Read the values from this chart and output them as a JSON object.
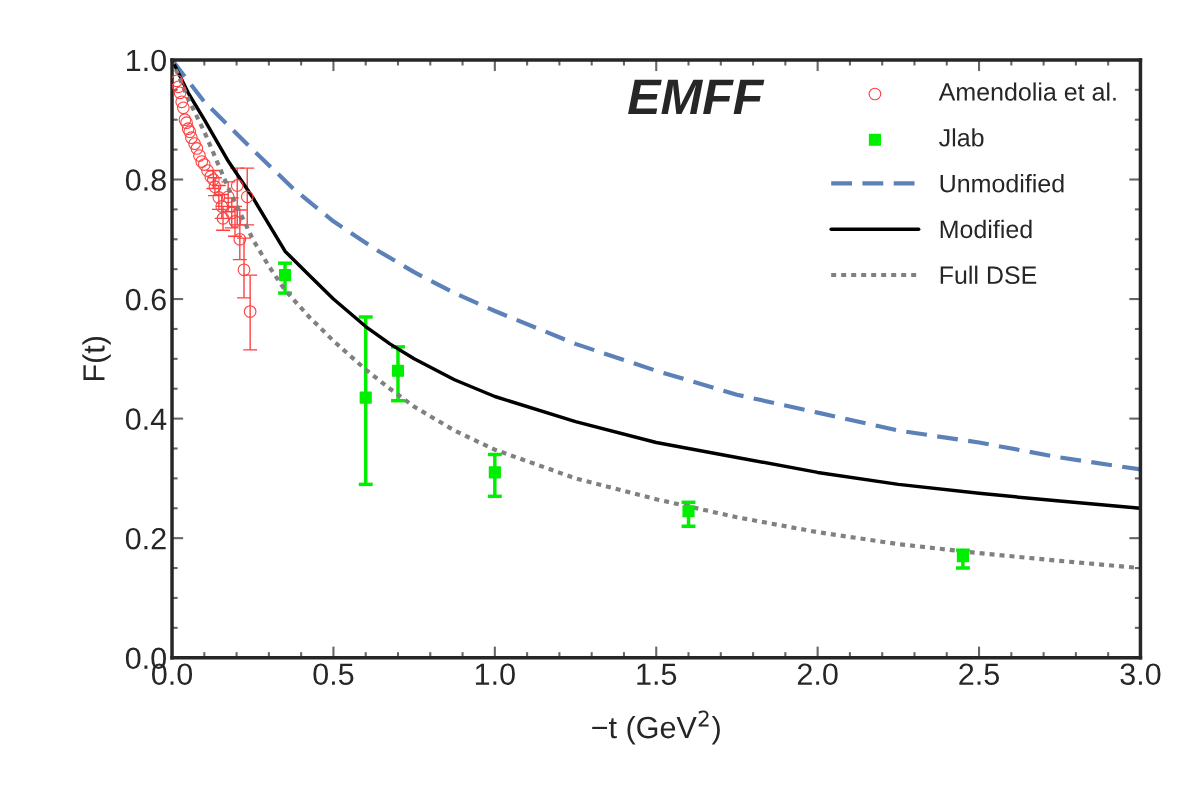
{
  "chart_data": {
    "type": "line",
    "title": "EMFF",
    "xlabel": "−t (GeV$^{2}$)",
    "ylabel": "F(t)",
    "xlim": [
      0,
      3
    ],
    "ylim": [
      0,
      1
    ],
    "xticks": [
      {
        "value": 0,
        "label": "0.0"
      },
      {
        "value": 0.5,
        "label": "0.5"
      },
      {
        "value": 1,
        "label": "1.0"
      },
      {
        "value": 1.5,
        "label": "1.5"
      },
      {
        "value": 2,
        "label": "2.0"
      },
      {
        "value": 2.5,
        "label": "2.5"
      },
      {
        "value": 3,
        "label": "3.0"
      }
    ],
    "yticks": [
      {
        "value": 0,
        "label": "0.0"
      },
      {
        "value": 0.2,
        "label": "0.2"
      },
      {
        "value": 0.4,
        "label": "0.4"
      },
      {
        "value": 0.6,
        "label": "0.6"
      },
      {
        "value": 0.8,
        "label": "0.8"
      },
      {
        "value": 1,
        "label": "1.0"
      }
    ],
    "grid": false,
    "legend": "top right",
    "series": [
      {
        "name": "Amendolia et al.",
        "type": "scatter",
        "marker": "circle",
        "color": "#ff4040",
        "x": [
          0.015,
          0.02,
          0.025,
          0.03,
          0.035,
          0.04,
          0.045,
          0.05,
          0.055,
          0.06,
          0.07,
          0.077,
          0.085,
          0.092,
          0.1,
          0.11,
          0.12,
          0.128,
          0.133,
          0.145,
          0.154,
          0.158,
          0.174,
          0.185,
          0.195,
          0.202,
          0.21,
          0.223,
          0.233,
          0.242
        ],
        "values": [
          0.965,
          0.955,
          0.945,
          0.93,
          0.92,
          0.9,
          0.895,
          0.885,
          0.88,
          0.87,
          0.86,
          0.852,
          0.84,
          0.83,
          0.825,
          0.815,
          0.805,
          0.8,
          0.788,
          0.77,
          0.755,
          0.735,
          0.771,
          0.744,
          0.73,
          0.79,
          0.7,
          0.649,
          0.771,
          0.579
        ],
        "errors": [
          null,
          null,
          null,
          null,
          null,
          null,
          null,
          null,
          null,
          null,
          null,
          null,
          null,
          null,
          null,
          null,
          null,
          0.015,
          0.015,
          0.02,
          0.02,
          0.02,
          0.025,
          0.025,
          0.025,
          [
            0.724,
            0.819
          ],
          [
            0.666,
            0.749
          ],
          [
            0.602,
            0.702
          ],
          [
            0.724,
            0.819
          ],
          [
            0.515,
            0.64
          ]
        ]
      },
      {
        "name": "Jlab",
        "type": "scatter",
        "marker": "square",
        "color": "#00ee00",
        "x": [
          0.35,
          0.6,
          0.7,
          1.0,
          1.6,
          2.45
        ],
        "values": [
          0.64,
          0.435,
          0.48,
          0.31,
          0.245,
          0.17
        ],
        "errors": [
          [
            0.61,
            0.66
          ],
          [
            0.29,
            0.57
          ],
          [
            0.43,
            0.52
          ],
          [
            0.27,
            0.34
          ],
          [
            0.22,
            0.26
          ],
          [
            0.15,
            0.18
          ]
        ]
      },
      {
        "name": "Unmodified",
        "line_style": "dashed",
        "color": "#5b81b8",
        "x": [
          0,
          0.05,
          0.1,
          0.175,
          0.25,
          0.375,
          0.5,
          0.625,
          0.75,
          0.875,
          1.0,
          1.25,
          1.5,
          1.75,
          2.0,
          2.25,
          2.5,
          2.75,
          3.0
        ],
        "values": [
          1.0,
          0.965,
          0.93,
          0.89,
          0.85,
          0.785,
          0.73,
          0.685,
          0.645,
          0.61,
          0.58,
          0.525,
          0.48,
          0.44,
          0.41,
          0.38,
          0.36,
          0.335,
          0.315
        ]
      },
      {
        "name": "Modified",
        "line_style": "solid",
        "color": "#000000",
        "x": [
          0,
          0.05,
          0.1,
          0.175,
          0.25,
          0.3,
          0.35,
          0.425,
          0.5,
          0.6,
          0.675,
          0.75,
          0.875,
          1.0,
          1.25,
          1.5,
          1.75,
          2.0,
          2.25,
          2.5,
          2.75,
          3.0
        ],
        "values": [
          1.0,
          0.945,
          0.9,
          0.83,
          0.77,
          0.725,
          0.68,
          0.64,
          0.6,
          0.554,
          0.525,
          0.5,
          0.465,
          0.437,
          0.395,
          0.36,
          0.335,
          0.31,
          0.29,
          0.275,
          0.262,
          0.25
        ]
      },
      {
        "name": "Full DSE",
        "line_style": "dotted",
        "color": "#808080",
        "x": [
          0,
          0.05,
          0.1,
          0.175,
          0.25,
          0.3,
          0.35,
          0.425,
          0.5,
          0.6,
          0.675,
          0.75,
          0.875,
          1.0,
          1.25,
          1.5,
          1.75,
          2.0,
          2.25,
          2.5,
          2.75,
          3.0
        ],
        "values": [
          1.0,
          0.935,
          0.88,
          0.785,
          0.7,
          0.655,
          0.615,
          0.57,
          0.53,
          0.482,
          0.45,
          0.42,
          0.38,
          0.348,
          0.3,
          0.265,
          0.235,
          0.21,
          0.19,
          0.175,
          0.162,
          0.15
        ]
      }
    ]
  }
}
